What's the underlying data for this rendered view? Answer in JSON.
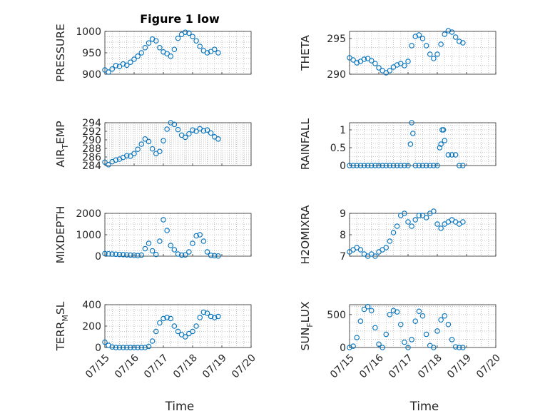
{
  "figure": {
    "title": "Figure 1 low",
    "xlabel": "Time",
    "marker_color": "#0072BD"
  },
  "chart_data": [
    {
      "type": "scatter",
      "ylabel": "PRESSURE",
      "title": "Figure 1 low",
      "xlim": [
        "07/15",
        "07/20"
      ],
      "ylim": [
        900,
        1000
      ],
      "yticks": [
        "900",
        "950",
        "1000"
      ],
      "xticks": [
        "07/15",
        "07/16",
        "07/17",
        "07/18",
        "07/19",
        "07/20"
      ],
      "x": [
        "07/15 00h",
        "07/15 03h",
        "07/15 06h",
        "07/15 09h",
        "07/15 12h",
        "07/15 15h",
        "07/15 18h",
        "07/15 21h",
        "07/16 00h",
        "07/16 03h",
        "07/16 06h",
        "07/16 09h",
        "07/16 12h",
        "07/16 15h",
        "07/16 18h",
        "07/16 21h",
        "07/17 00h",
        "07/17 03h",
        "07/17 06h",
        "07/17 09h",
        "07/17 12h",
        "07/17 15h",
        "07/17 18h",
        "07/17 21h",
        "07/18 00h",
        "07/18 03h",
        "07/18 06h",
        "07/18 09h",
        "07/18 12h",
        "07/18 15h",
        "07/18 18h",
        "07/18 21h"
      ],
      "y": [
        910,
        905,
        912,
        920,
        918,
        924,
        921,
        928,
        935,
        942,
        950,
        962,
        973,
        982,
        978,
        962,
        952,
        948,
        942,
        958,
        984,
        993,
        998,
        996,
        988,
        978,
        965,
        955,
        950,
        953,
        958,
        950
      ]
    },
    {
      "type": "scatter",
      "ylabel": "THETA",
      "xlim": [
        "07/15",
        "07/20"
      ],
      "ylim": [
        290,
        296
      ],
      "yticks": [
        "290",
        "295"
      ],
      "xticks": [
        "07/15",
        "07/16",
        "07/17",
        "07/18",
        "07/19",
        "07/20"
      ],
      "x": [
        "07/15 00h",
        "07/15 03h",
        "07/15 06h",
        "07/15 09h",
        "07/15 12h",
        "07/15 15h",
        "07/15 18h",
        "07/15 21h",
        "07/16 00h",
        "07/16 03h",
        "07/16 06h",
        "07/16 09h",
        "07/16 12h",
        "07/16 15h",
        "07/16 18h",
        "07/16 21h",
        "07/17 00h",
        "07/17 03h",
        "07/17 06h",
        "07/17 09h",
        "07/17 12h",
        "07/17 15h",
        "07/17 18h",
        "07/17 21h",
        "07/18 00h",
        "07/18 03h",
        "07/18 06h",
        "07/18 09h",
        "07/18 12h",
        "07/18 15h",
        "07/18 18h",
        "07/18 21h"
      ],
      "y": [
        292.3,
        292.0,
        291.6,
        291.8,
        292.1,
        292.2,
        291.9,
        291.5,
        290.9,
        290.5,
        290.2,
        290.5,
        291.0,
        291.3,
        291.5,
        291.2,
        291.8,
        294.0,
        295.3,
        295.5,
        295.0,
        294.0,
        292.8,
        292.2,
        292.8,
        294.2,
        295.6,
        296.1,
        295.9,
        295.2,
        294.6,
        294.4
      ]
    },
    {
      "type": "scatter",
      "ylabel": "AIR_TEMP",
      "xlim": [
        "07/15",
        "07/20"
      ],
      "ylim": [
        284,
        294
      ],
      "yticks": [
        "284",
        "286",
        "288",
        "290",
        "292",
        "294"
      ],
      "xticks": [
        "07/15",
        "07/16",
        "07/17",
        "07/18",
        "07/19",
        "07/20"
      ],
      "x": [
        "07/15 00h",
        "07/15 03h",
        "07/15 06h",
        "07/15 09h",
        "07/15 12h",
        "07/15 15h",
        "07/15 18h",
        "07/15 21h",
        "07/16 00h",
        "07/16 03h",
        "07/16 06h",
        "07/16 09h",
        "07/16 12h",
        "07/16 15h",
        "07/16 18h",
        "07/16 21h",
        "07/17 00h",
        "07/17 03h",
        "07/17 06h",
        "07/17 09h",
        "07/17 12h",
        "07/17 15h",
        "07/17 18h",
        "07/17 21h",
        "07/18 00h",
        "07/18 03h",
        "07/18 06h",
        "07/18 09h",
        "07/18 12h",
        "07/18 15h",
        "07/18 18h",
        "07/18 21h"
      ],
      "y": [
        284.8,
        284.2,
        284.9,
        285.3,
        285.5,
        285.9,
        286.3,
        286.2,
        286.8,
        287.8,
        289.0,
        290.2,
        289.6,
        287.9,
        286.8,
        287.3,
        289.8,
        292.5,
        294.0,
        293.6,
        292.4,
        291.1,
        290.6,
        291.4,
        292.3,
        292.0,
        292.6,
        292.1,
        292.3,
        291.6,
        290.7,
        290.2
      ]
    },
    {
      "type": "scatter",
      "ylabel": "RAINFALL",
      "xlim": [
        "07/15",
        "07/20"
      ],
      "ylim": [
        0,
        1.2
      ],
      "yticks": [
        "0",
        "0.5",
        "1"
      ],
      "xticks": [
        "07/15",
        "07/16",
        "07/17",
        "07/18",
        "07/19",
        "07/20"
      ],
      "x": [
        "07/15 00h",
        "07/15 03h",
        "07/15 06h",
        "07/15 09h",
        "07/15 12h",
        "07/15 15h",
        "07/15 18h",
        "07/15 21h",
        "07/16 00h",
        "07/16 03h",
        "07/16 06h",
        "07/16 09h",
        "07/16 12h",
        "07/16 15h",
        "07/16 18h",
        "07/16 21h",
        "07/17 00h",
        "07/17 02h",
        "07/17 03h",
        "07/17 04h",
        "07/17 06h",
        "07/17 09h",
        "07/17 12h",
        "07/17 15h",
        "07/17 18h",
        "07/17 21h",
        "07/18 00h",
        "07/18 02h",
        "07/18 03h",
        "07/18 04h",
        "07/18 05h",
        "07/18 06h",
        "07/18 09h",
        "07/18 12h",
        "07/18 15h",
        "07/18 18h",
        "07/18 21h"
      ],
      "y": [
        0,
        0,
        0,
        0,
        0,
        0,
        0,
        0,
        0,
        0,
        0,
        0,
        0,
        0,
        0,
        0,
        0,
        0.6,
        1.2,
        0.9,
        0,
        0,
        0,
        0,
        0,
        0,
        0,
        0.5,
        0.6,
        1.0,
        1.0,
        0.7,
        0.3,
        0.3,
        0.3,
        0,
        0
      ]
    },
    {
      "type": "scatter",
      "ylabel": "MIXDEPTH",
      "xlim": [
        "07/15",
        "07/20"
      ],
      "ylim": [
        0,
        2000
      ],
      "yticks": [
        "0",
        "1000",
        "2000"
      ],
      "xticks": [
        "07/15",
        "07/16",
        "07/17",
        "07/18",
        "07/19",
        "07/20"
      ],
      "x": [
        "07/15 00h",
        "07/15 03h",
        "07/15 06h",
        "07/15 09h",
        "07/15 12h",
        "07/15 15h",
        "07/15 18h",
        "07/15 21h",
        "07/16 00h",
        "07/16 03h",
        "07/16 06h",
        "07/16 09h",
        "07/16 12h",
        "07/16 15h",
        "07/16 18h",
        "07/16 21h",
        "07/17 00h",
        "07/17 03h",
        "07/17 06h",
        "07/17 09h",
        "07/17 12h",
        "07/17 15h",
        "07/17 18h",
        "07/17 21h",
        "07/18 00h",
        "07/18 03h",
        "07/18 06h",
        "07/18 09h",
        "07/18 12h",
        "07/18 15h",
        "07/18 18h",
        "07/18 21h"
      ],
      "y": [
        120,
        110,
        100,
        90,
        80,
        70,
        60,
        50,
        40,
        30,
        50,
        350,
        600,
        250,
        80,
        700,
        1700,
        1200,
        500,
        300,
        100,
        50,
        60,
        200,
        600,
        950,
        1000,
        700,
        200,
        40,
        20,
        10
      ]
    },
    {
      "type": "scatter",
      "ylabel": "H2OMIXRA",
      "xlim": [
        "07/15",
        "07/20"
      ],
      "ylim": [
        7,
        9
      ],
      "yticks": [
        "7",
        "8",
        "9"
      ],
      "xticks": [
        "07/15",
        "07/16",
        "07/17",
        "07/18",
        "07/19",
        "07/20"
      ],
      "x": [
        "07/15 00h",
        "07/15 03h",
        "07/15 06h",
        "07/15 09h",
        "07/15 12h",
        "07/15 15h",
        "07/15 18h",
        "07/15 21h",
        "07/16 00h",
        "07/16 03h",
        "07/16 06h",
        "07/16 09h",
        "07/16 12h",
        "07/16 15h",
        "07/16 18h",
        "07/16 21h",
        "07/17 00h",
        "07/17 03h",
        "07/17 06h",
        "07/17 09h",
        "07/17 12h",
        "07/17 15h",
        "07/17 18h",
        "07/17 21h",
        "07/18 00h",
        "07/18 03h",
        "07/18 06h",
        "07/18 09h",
        "07/18 12h",
        "07/18 15h",
        "07/18 18h",
        "07/18 21h"
      ],
      "y": [
        7.2,
        7.3,
        7.4,
        7.3,
        7.1,
        7.0,
        7.1,
        7.0,
        7.2,
        7.3,
        7.4,
        7.7,
        8.1,
        8.4,
        8.9,
        9.0,
        8.6,
        8.4,
        8.7,
        8.9,
        8.9,
        8.8,
        9.0,
        9.1,
        8.5,
        8.3,
        8.5,
        8.6,
        8.7,
        8.6,
        8.5,
        8.6
      ]
    },
    {
      "type": "scatter",
      "ylabel": "TERR_MSL",
      "xlim": [
        "07/15",
        "07/20"
      ],
      "ylim": [
        0,
        400
      ],
      "yticks": [
        "0",
        "200",
        "400"
      ],
      "xticks": [
        "07/15",
        "07/16",
        "07/17",
        "07/18",
        "07/19",
        "07/20"
      ],
      "x": [
        "07/15 00h",
        "07/15 03h",
        "07/15 06h",
        "07/15 09h",
        "07/15 12h",
        "07/15 15h",
        "07/15 18h",
        "07/15 21h",
        "07/16 00h",
        "07/16 03h",
        "07/16 06h",
        "07/16 09h",
        "07/16 12h",
        "07/16 15h",
        "07/16 18h",
        "07/16 21h",
        "07/17 00h",
        "07/17 03h",
        "07/17 06h",
        "07/17 09h",
        "07/17 12h",
        "07/17 15h",
        "07/17 18h",
        "07/17 21h",
        "07/18 00h",
        "07/18 03h",
        "07/18 06h",
        "07/18 09h",
        "07/18 12h",
        "07/18 15h",
        "07/18 18h",
        "07/18 21h"
      ],
      "y": [
        50,
        20,
        5,
        0,
        0,
        0,
        0,
        0,
        0,
        0,
        0,
        0,
        10,
        60,
        150,
        230,
        270,
        280,
        270,
        200,
        150,
        120,
        100,
        130,
        150,
        200,
        280,
        330,
        320,
        290,
        280,
        290
      ]
    },
    {
      "type": "scatter",
      "ylabel": "SUN_FLUX",
      "xlim": [
        "07/15",
        "07/20"
      ],
      "ylim": [
        0,
        650
      ],
      "yticks": [
        "0",
        "500"
      ],
      "xticks": [
        "07/15",
        "07/16",
        "07/17",
        "07/18",
        "07/19",
        "07/20"
      ],
      "x": [
        "07/15 00h",
        "07/15 03h",
        "07/15 06h",
        "07/15 09h",
        "07/15 12h",
        "07/15 15h",
        "07/15 18h",
        "07/15 21h",
        "07/16 00h",
        "07/16 03h",
        "07/16 06h",
        "07/16 09h",
        "07/16 12h",
        "07/16 15h",
        "07/16 18h",
        "07/16 21h",
        "07/17 00h",
        "07/17 03h",
        "07/17 06h",
        "07/17 09h",
        "07/17 12h",
        "07/17 15h",
        "07/17 18h",
        "07/17 21h",
        "07/18 00h",
        "07/18 03h",
        "07/18 06h",
        "07/18 09h",
        "07/18 12h",
        "07/18 15h",
        "07/18 18h",
        "07/18 21h"
      ],
      "y": [
        0,
        20,
        150,
        400,
        580,
        620,
        560,
        300,
        50,
        0,
        200,
        500,
        560,
        540,
        350,
        80,
        0,
        120,
        400,
        550,
        480,
        200,
        30,
        0,
        250,
        420,
        480,
        350,
        120,
        10,
        0,
        0
      ]
    }
  ]
}
